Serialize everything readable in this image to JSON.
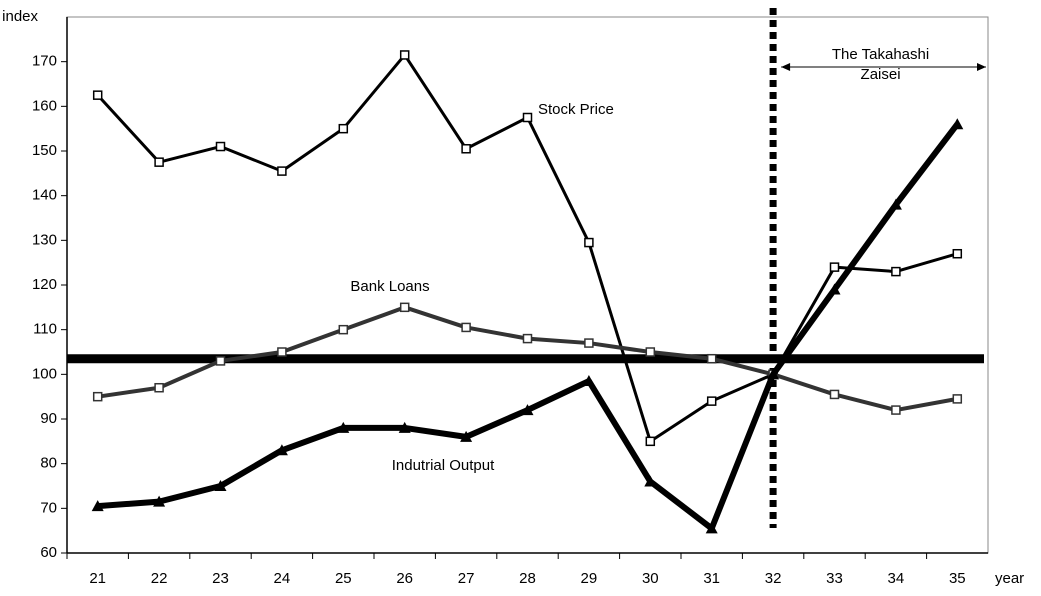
{
  "chart_data": {
    "type": "line",
    "y_label": "index",
    "x_label": "year",
    "categories": [
      "21",
      "22",
      "23",
      "24",
      "25",
      "26",
      "27",
      "28",
      "29",
      "30",
      "31",
      "32",
      "33",
      "34",
      "35"
    ],
    "series": [
      {
        "name": "Stock Price",
        "color": "#000000",
        "width": 3,
        "marker": "square",
        "values": [
          162.5,
          147.5,
          151,
          145.5,
          155,
          171.5,
          150.5,
          157.5,
          129.5,
          85,
          94,
          100,
          124,
          123,
          127
        ]
      },
      {
        "name": "Bank Loans",
        "color": "#333333",
        "width": 4,
        "marker": "square",
        "values": [
          95,
          97,
          103,
          105,
          110,
          115,
          110.5,
          108,
          107,
          105,
          103.5,
          100,
          95.5,
          92,
          94.5
        ]
      },
      {
        "name": "Indutrial Output",
        "color": "#000000",
        "width": 6,
        "marker": "triangle",
        "values": [
          70.5,
          71.5,
          75,
          83,
          88,
          88,
          86,
          92,
          98.5,
          76,
          65.5,
          100,
          119,
          138,
          156
        ]
      }
    ],
    "reference_line": 103.5,
    "period_start": "32",
    "annotation": "The Takahashi Zaisei",
    "ylim": [
      60,
      180
    ],
    "yticks": [
      60,
      70,
      80,
      90,
      100,
      110,
      120,
      130,
      140,
      150,
      160,
      170
    ]
  }
}
